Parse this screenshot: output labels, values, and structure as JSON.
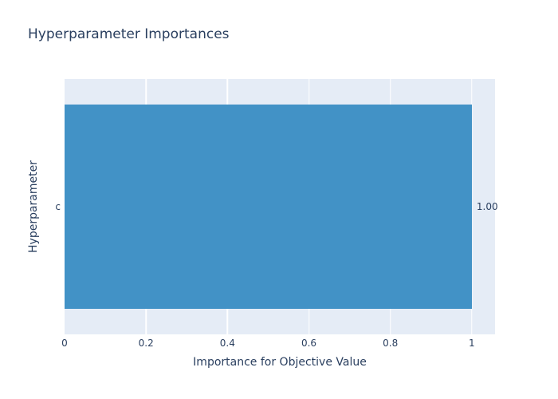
{
  "figure": {
    "title": "Hyperparameter Importances"
  },
  "chart_data": {
    "type": "bar",
    "orientation": "horizontal",
    "title": "Hyperparameter Importances",
    "xlabel": "Importance for Objective Value",
    "ylabel": "Hyperparameter",
    "categories": [
      "c"
    ],
    "values": [
      1.0
    ],
    "bar_labels": [
      "1.00"
    ],
    "x_ticks": [
      0,
      0.2,
      0.4,
      0.6,
      0.8,
      1
    ],
    "x_tick_labels": [
      "0",
      "0.2",
      "0.4",
      "0.6",
      "0.8",
      "1"
    ],
    "xlim": [
      0,
      1.057
    ],
    "grid": true,
    "legend": "none",
    "bar_gap_fraction": 0.2,
    "colors": {
      "bar": "#4292c6",
      "plot_background": "#e5ecf6",
      "gridline": "#ffffff",
      "text": "#2a3f5f",
      "figure_background": "#ffffff"
    }
  }
}
